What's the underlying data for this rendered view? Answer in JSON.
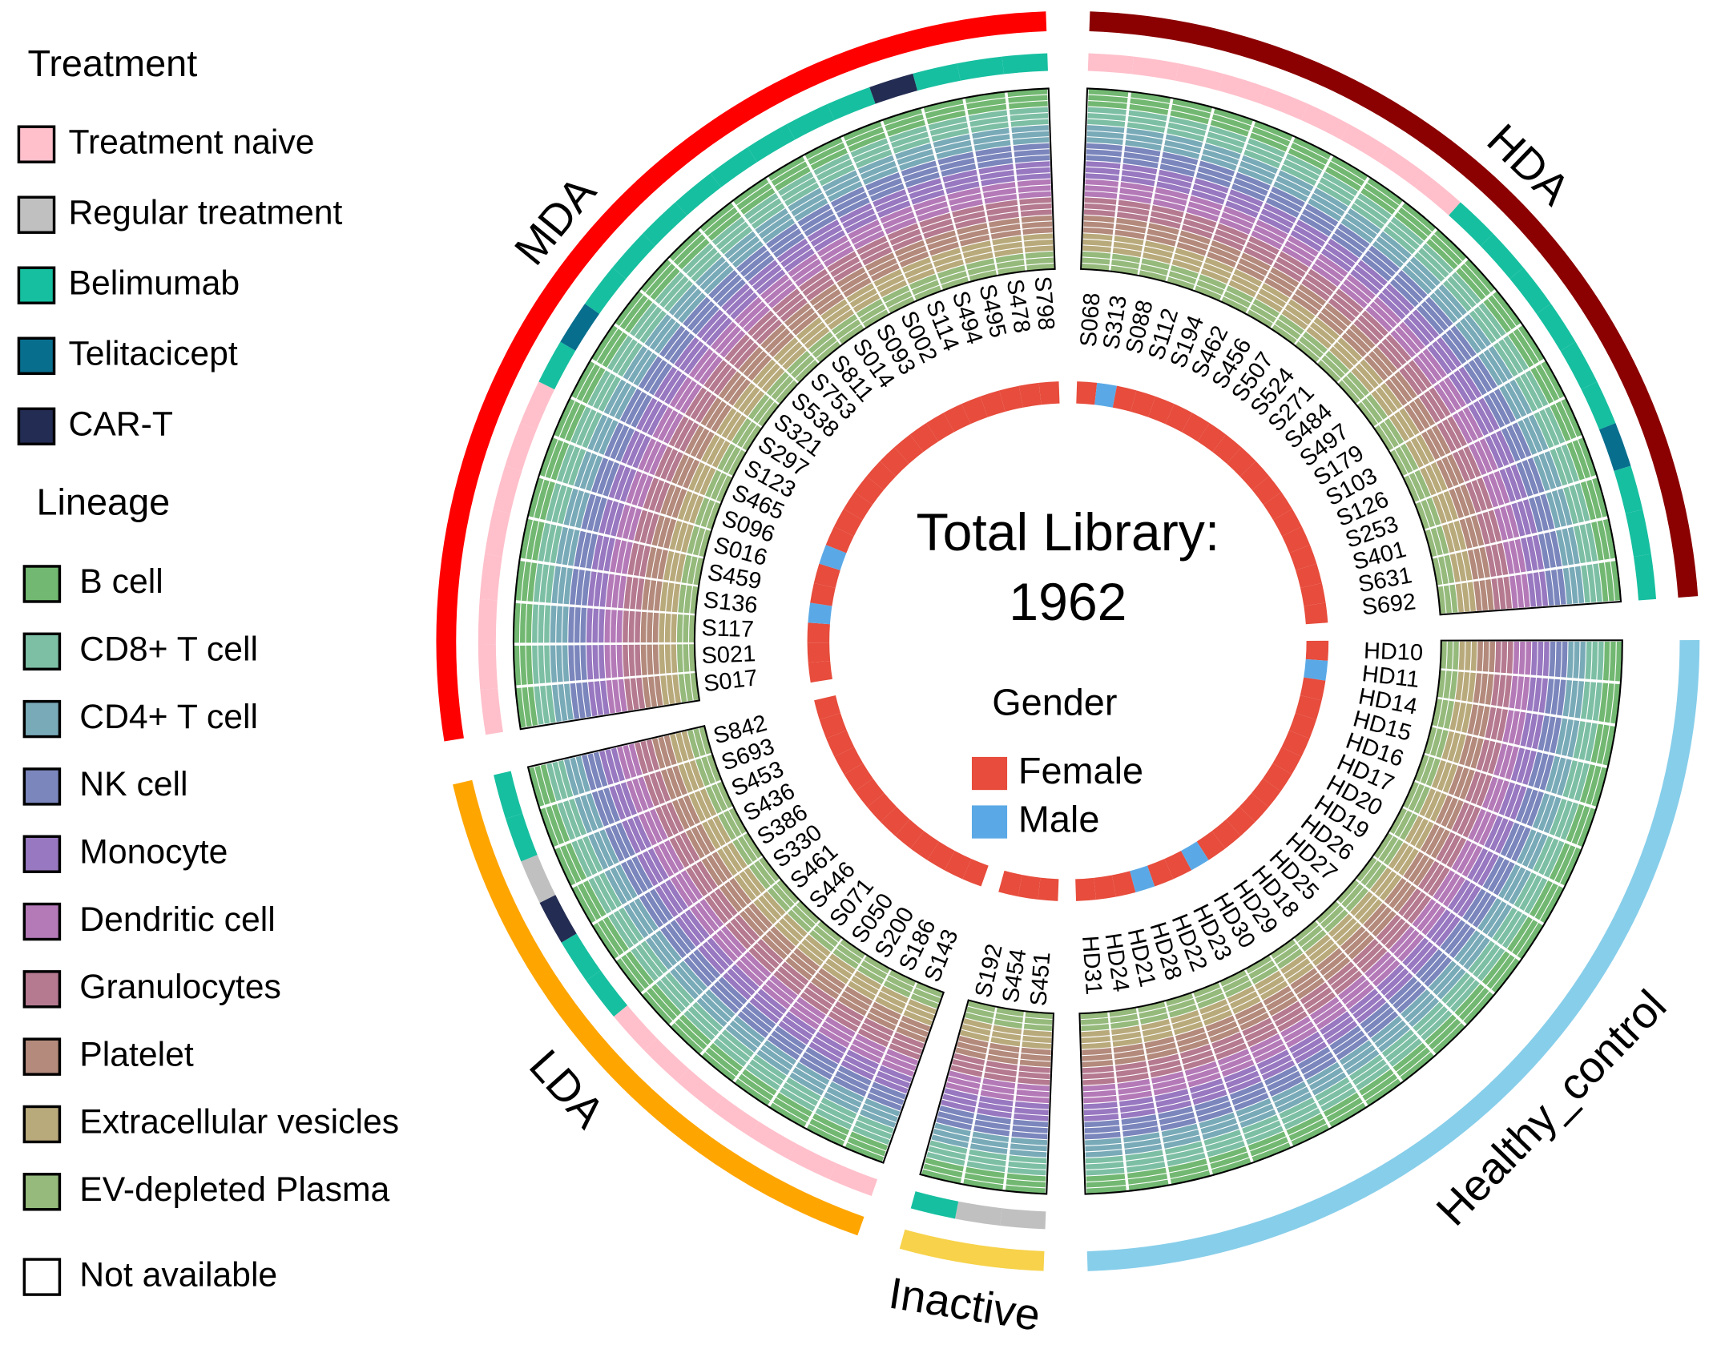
{
  "chart_data": {
    "type": "circos",
    "title": "Total Library:",
    "total": 1962,
    "treatment_legend": {
      "title": "Treatment",
      "items": [
        {
          "name": "Treatment naive",
          "color": "#ffc0cb"
        },
        {
          "name": "Regular treatment",
          "color": "#c0c0c0"
        },
        {
          "name": "Belimumab",
          "color": "#16bfa0"
        },
        {
          "name": "Telitacicept",
          "color": "#086e8e"
        },
        {
          "name": "CAR-T",
          "color": "#232c52"
        }
      ]
    },
    "lineage_legend": {
      "title": "Lineage",
      "items": [
        {
          "name": "B cell",
          "color": "#72b872"
        },
        {
          "name": "CD8+ T cell",
          "color": "#7dbfa5"
        },
        {
          "name": "CD4+ T cell",
          "color": "#79aab8"
        },
        {
          "name": "NK cell",
          "color": "#7b86bd"
        },
        {
          "name": "Monocyte",
          "color": "#9878c0"
        },
        {
          "name": "Dendritic cell",
          "color": "#b47ab8"
        },
        {
          "name": "Granulocytes",
          "color": "#b57a90"
        },
        {
          "name": "Platelet",
          "color": "#b38a7c"
        },
        {
          "name": "Extracellular vesicles",
          "color": "#b9aa7c"
        },
        {
          "name": "EV-depleted Plasma",
          "color": "#95ba7c"
        }
      ]
    },
    "not_available": {
      "name": "Not available",
      "color": "#ffffff"
    },
    "gender_legend": {
      "title": "Gender",
      "items": [
        {
          "name": "Female",
          "color": "#e74c3c"
        },
        {
          "name": "Male",
          "color": "#5aa9e6"
        }
      ]
    },
    "groups": [
      {
        "name": "HDA",
        "color": "#8b0000",
        "samples": [
          {
            "id": "S068",
            "gender": "Female",
            "treatment": "Treatment naive"
          },
          {
            "id": "S313",
            "gender": "Male",
            "treatment": "Treatment naive"
          },
          {
            "id": "S088",
            "gender": "Female",
            "treatment": "Treatment naive"
          },
          {
            "id": "S112",
            "gender": "Female",
            "treatment": "Treatment naive"
          },
          {
            "id": "S194",
            "gender": "Female",
            "treatment": "Treatment naive"
          },
          {
            "id": "S462",
            "gender": "Female",
            "treatment": "Treatment naive"
          },
          {
            "id": "S456",
            "gender": "Female",
            "treatment": "Treatment naive"
          },
          {
            "id": "S507",
            "gender": "Female",
            "treatment": "Treatment naive"
          },
          {
            "id": "S524",
            "gender": "Female",
            "treatment": "Treatment naive"
          },
          {
            "id": "S271",
            "gender": "Female",
            "treatment": "Belimumab"
          },
          {
            "id": "S484",
            "gender": "Female",
            "treatment": "Belimumab"
          },
          {
            "id": "S497",
            "gender": "Female",
            "treatment": "Belimumab"
          },
          {
            "id": "S179",
            "gender": "Female",
            "treatment": "Belimumab"
          },
          {
            "id": "S103",
            "gender": "Female",
            "treatment": "Belimumab"
          },
          {
            "id": "S126",
            "gender": "Female",
            "treatment": "Belimumab"
          },
          {
            "id": "S253",
            "gender": "Female",
            "treatment": "Telitacicept"
          },
          {
            "id": "S401",
            "gender": "Female",
            "treatment": "Belimumab"
          },
          {
            "id": "S631",
            "gender": "Female",
            "treatment": "Belimumab"
          },
          {
            "id": "S692",
            "gender": "Female",
            "treatment": "Belimumab"
          }
        ]
      },
      {
        "name": "Healthy_control",
        "color": "#87ceea",
        "samples": [
          {
            "id": "HD10",
            "gender": "Female",
            "treatment": null
          },
          {
            "id": "HD11",
            "gender": "Male",
            "treatment": null
          },
          {
            "id": "HD14",
            "gender": "Female",
            "treatment": null
          },
          {
            "id": "HD15",
            "gender": "Female",
            "treatment": null
          },
          {
            "id": "HD16",
            "gender": "Female",
            "treatment": null
          },
          {
            "id": "HD17",
            "gender": "Female",
            "treatment": null
          },
          {
            "id": "HD20",
            "gender": "Female",
            "treatment": null
          },
          {
            "id": "HD19",
            "gender": "Female",
            "treatment": null
          },
          {
            "id": "HD26",
            "gender": "Female",
            "treatment": null
          },
          {
            "id": "HD27",
            "gender": "Female",
            "treatment": null
          },
          {
            "id": "HD25",
            "gender": "Female",
            "treatment": null
          },
          {
            "id": "HD18",
            "gender": "Female",
            "treatment": null
          },
          {
            "id": "HD29",
            "gender": "Female",
            "treatment": null
          },
          {
            "id": "HD30",
            "gender": "Male",
            "treatment": null
          },
          {
            "id": "HD23",
            "gender": "Female",
            "treatment": null
          },
          {
            "id": "HD22",
            "gender": "Female",
            "treatment": null
          },
          {
            "id": "HD28",
            "gender": "Male",
            "treatment": null
          },
          {
            "id": "HD21",
            "gender": "Female",
            "treatment": null
          },
          {
            "id": "HD24",
            "gender": "Female",
            "treatment": null
          },
          {
            "id": "HD31",
            "gender": "Female",
            "treatment": null
          }
        ]
      },
      {
        "name": "Inactive",
        "color": "#f7d24a",
        "samples": [
          {
            "id": "S451",
            "gender": "Female",
            "treatment": "Regular treatment"
          },
          {
            "id": "S454",
            "gender": "Female",
            "treatment": "Regular treatment"
          },
          {
            "id": "S192",
            "gender": "Female",
            "treatment": "Belimumab"
          }
        ]
      },
      {
        "name": "LDA",
        "color": "#ffa500",
        "samples": [
          {
            "id": "S143",
            "gender": "Female",
            "treatment": "Treatment naive"
          },
          {
            "id": "S186",
            "gender": "Female",
            "treatment": "Treatment naive"
          },
          {
            "id": "S200",
            "gender": "Female",
            "treatment": "Treatment naive"
          },
          {
            "id": "S050",
            "gender": "Female",
            "treatment": "Treatment naive"
          },
          {
            "id": "S071",
            "gender": "Female",
            "treatment": "Treatment naive"
          },
          {
            "id": "S446",
            "gender": "Female",
            "treatment": "Treatment naive"
          },
          {
            "id": "S461",
            "gender": "Female",
            "treatment": "Treatment naive"
          },
          {
            "id": "S330",
            "gender": "Female",
            "treatment": "Belimumab"
          },
          {
            "id": "S386",
            "gender": "Female",
            "treatment": "Belimumab"
          },
          {
            "id": "S436",
            "gender": "Female",
            "treatment": "CAR-T"
          },
          {
            "id": "S453",
            "gender": "Female",
            "treatment": "Regular treatment"
          },
          {
            "id": "S693",
            "gender": "Female",
            "treatment": "Belimumab"
          },
          {
            "id": "S842",
            "gender": "Female",
            "treatment": "Belimumab"
          }
        ]
      },
      {
        "name": "MDA",
        "color": "#ff0000",
        "samples": [
          {
            "id": "S017",
            "gender": "Female",
            "treatment": "Treatment naive"
          },
          {
            "id": "S021",
            "gender": "Female",
            "treatment": "Treatment naive"
          },
          {
            "id": "S117",
            "gender": "Female",
            "treatment": "Treatment naive"
          },
          {
            "id": "S136",
            "gender": "Male",
            "treatment": "Treatment naive"
          },
          {
            "id": "S459",
            "gender": "Female",
            "treatment": "Treatment naive"
          },
          {
            "id": "S016",
            "gender": "Female",
            "treatment": "Treatment naive"
          },
          {
            "id": "S096",
            "gender": "Male",
            "treatment": "Treatment naive"
          },
          {
            "id": "S465",
            "gender": "Female",
            "treatment": "Treatment naive"
          },
          {
            "id": "S123",
            "gender": "Female",
            "treatment": "Belimumab"
          },
          {
            "id": "S297",
            "gender": "Female",
            "treatment": "Telitacicept"
          },
          {
            "id": "S321",
            "gender": "Female",
            "treatment": "Belimumab"
          },
          {
            "id": "S538",
            "gender": "Female",
            "treatment": "Belimumab"
          },
          {
            "id": "S753",
            "gender": "Female",
            "treatment": "Belimumab"
          },
          {
            "id": "S811",
            "gender": "Female",
            "treatment": "Belimumab"
          },
          {
            "id": "S014",
            "gender": "Female",
            "treatment": "Belimumab"
          },
          {
            "id": "S093",
            "gender": "Female",
            "treatment": "Belimumab"
          },
          {
            "id": "S002",
            "gender": "Female",
            "treatment": "Belimumab"
          },
          {
            "id": "S114",
            "gender": "Female",
            "treatment": "Belimumab"
          },
          {
            "id": "S494",
            "gender": "Female",
            "treatment": "CAR-T"
          },
          {
            "id": "S495",
            "gender": "Female",
            "treatment": "Belimumab"
          },
          {
            "id": "S478",
            "gender": "Female",
            "treatment": "Belimumab"
          },
          {
            "id": "S798",
            "gender": "Female",
            "treatment": "Belimumab"
          }
        ]
      }
    ]
  }
}
